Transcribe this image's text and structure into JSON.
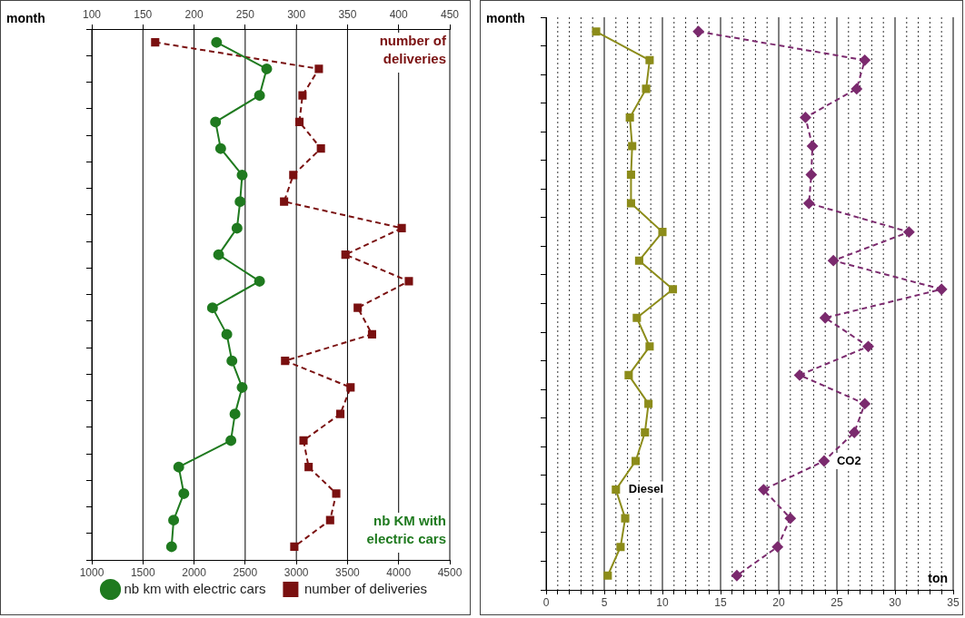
{
  "chart_data": [
    {
      "type": "line",
      "orientation": "horizontal",
      "ylabel": "month",
      "categories": [
        null,
        null,
        null,
        null,
        null,
        null,
        null,
        null,
        null,
        null,
        null,
        null,
        null,
        null,
        null,
        null,
        null,
        null,
        null,
        null
      ],
      "xlim": [
        1000,
        4500
      ],
      "xticks": [
        1000,
        1500,
        2000,
        2500,
        3000,
        3500,
        4000,
        4500
      ],
      "x2lim": [
        100,
        450
      ],
      "x2ticks": [
        100,
        150,
        200,
        250,
        300,
        350,
        400,
        450
      ],
      "grid": "x",
      "legend": "bottom",
      "annotations": [
        "nb KM with electric cars",
        "number of deliveries"
      ],
      "series": [
        {
          "name": "nb km with electric cars",
          "color": "#1f7a1f",
          "marker": "circle",
          "line_style": "solid",
          "values": [
            2220,
            2710,
            2640,
            2210,
            2260,
            2470,
            2450,
            2420,
            2240,
            2640,
            2180,
            2320,
            2370,
            2470,
            2400,
            2360,
            1850,
            1900,
            1800,
            1780
          ]
        },
        {
          "name": "number of deliveries",
          "color": "#7a1010",
          "marker": "square",
          "line_style": "dashed",
          "axis": "x2",
          "values": [
            162,
            322,
            306,
            303,
            324,
            297,
            288,
            403,
            348,
            410,
            360,
            374,
            289,
            353,
            343,
            307,
            312,
            339,
            333,
            298
          ]
        }
      ]
    },
    {
      "type": "line",
      "orientation": "horizontal",
      "ylabel": "month",
      "xlabel": "ton",
      "categories": [
        null,
        null,
        null,
        null,
        null,
        null,
        null,
        null,
        null,
        null,
        null,
        null,
        null,
        null,
        null,
        null,
        null,
        null,
        null,
        null
      ],
      "xlim": [
        0,
        35
      ],
      "xticks": [
        0,
        {
          "value": 1,
          "label": null
        },
        {
          "value": 2,
          "label": null
        },
        {
          "value": 3,
          "label": null
        },
        {
          "value": 4,
          "label": null
        },
        5,
        {
          "value": 6,
          "label": null
        },
        {
          "value": 7,
          "label": null
        },
        {
          "value": 8,
          "label": null
        },
        {
          "value": 9,
          "label": null
        },
        10,
        {
          "value": 11,
          "label": null
        },
        {
          "value": 12,
          "label": null
        },
        {
          "value": 13,
          "label": null
        },
        {
          "value": 14,
          "label": null
        },
        15,
        {
          "value": 16,
          "label": null
        },
        {
          "value": 17,
          "label": null
        },
        {
          "value": 18,
          "label": null
        },
        {
          "value": 19,
          "label": null
        },
        20,
        {
          "value": 21,
          "label": null
        },
        {
          "value": 22,
          "label": null
        },
        {
          "value": 23,
          "label": null
        },
        {
          "value": 24,
          "label": null
        },
        25,
        {
          "value": 26,
          "label": null
        },
        {
          "value": 27,
          "label": null
        },
        {
          "value": 28,
          "label": null
        },
        {
          "value": 29,
          "label": null
        },
        30,
        {
          "value": 31,
          "label": null
        },
        {
          "value": 32,
          "label": null
        },
        {
          "value": 33,
          "label": null
        },
        {
          "value": 34,
          "label": null
        },
        35
      ],
      "grid": "x",
      "legend": false,
      "series": [
        {
          "name": "Diesel",
          "color": "#8c8c1a",
          "marker": "square",
          "line_style": "solid",
          "values": [
            4.3,
            8.9,
            8.6,
            7.2,
            7.4,
            7.3,
            7.3,
            10.0,
            8.0,
            10.9,
            7.8,
            8.9,
            7.1,
            8.8,
            8.5,
            7.7,
            6.0,
            6.8,
            6.4,
            5.3
          ]
        },
        {
          "name": "CO2",
          "color": "#7b2a6e",
          "marker": "diamond",
          "line_style": "dashed",
          "values": [
            13.1,
            27.4,
            26.7,
            22.3,
            22.9,
            22.8,
            22.6,
            31.2,
            24.7,
            34.0,
            24.0,
            27.7,
            21.8,
            27.4,
            26.5,
            23.9,
            18.7,
            21.0,
            19.9,
            16.4
          ]
        }
      ]
    }
  ]
}
